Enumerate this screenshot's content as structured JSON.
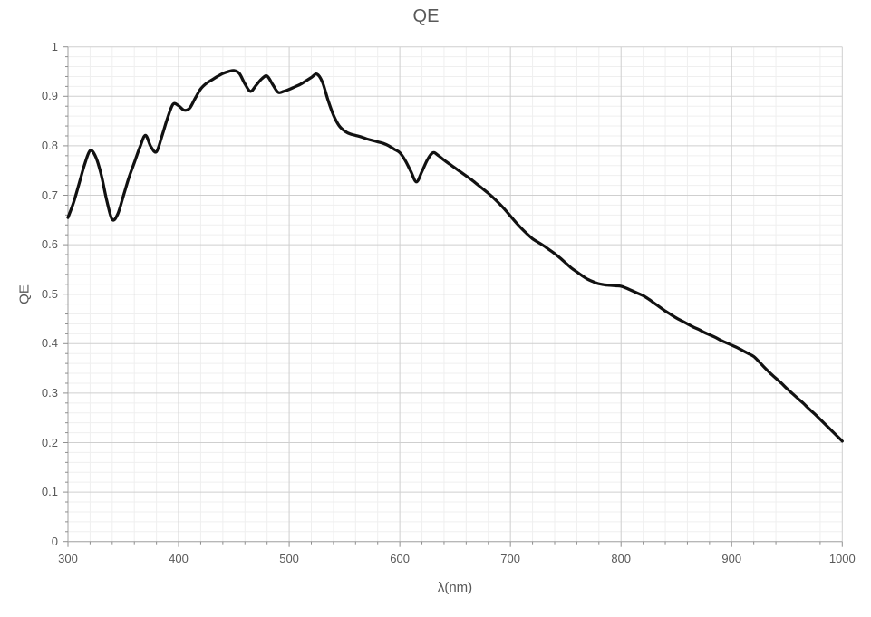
{
  "chart_data": {
    "type": "line",
    "title": "QE",
    "xlabel": "λ(nm)",
    "ylabel": "QE",
    "xlim": [
      300,
      1000
    ],
    "ylim": [
      0,
      1
    ],
    "grid": "major and minor gridlines on both axes",
    "legend_position": "none",
    "x_major_ticks": [
      300,
      400,
      500,
      600,
      700,
      800,
      900,
      1000
    ],
    "x_tick_labels": [
      "300",
      "400",
      "500",
      "600",
      "700",
      "800",
      "900",
      "1000"
    ],
    "x_minor_step": 20,
    "y_major_ticks": [
      0,
      0.1,
      0.2,
      0.3,
      0.4,
      0.5,
      0.6,
      0.7,
      0.8,
      0.9,
      1
    ],
    "y_tick_labels": [
      "0",
      "0.1",
      "0.2",
      "0.3",
      "0.4",
      "0.5",
      "0.6",
      "0.7",
      "0.8",
      "0.9",
      "1"
    ],
    "y_minor_step": 0.02,
    "series": [
      {
        "name": "QE",
        "color": "#111111",
        "x": [
          300,
          305,
          310,
          315,
          320,
          325,
          330,
          335,
          340,
          345,
          350,
          355,
          360,
          365,
          370,
          375,
          380,
          385,
          390,
          395,
          400,
          405,
          410,
          415,
          420,
          425,
          430,
          435,
          440,
          445,
          450,
          455,
          460,
          465,
          470,
          475,
          480,
          485,
          490,
          495,
          500,
          505,
          510,
          515,
          520,
          525,
          530,
          535,
          540,
          545,
          550,
          555,
          560,
          565,
          570,
          575,
          580,
          585,
          590,
          595,
          600,
          605,
          610,
          615,
          620,
          625,
          630,
          635,
          640,
          645,
          650,
          655,
          660,
          665,
          670,
          675,
          680,
          685,
          690,
          695,
          700,
          705,
          710,
          715,
          720,
          725,
          730,
          735,
          740,
          745,
          750,
          755,
          760,
          765,
          770,
          775,
          780,
          785,
          790,
          795,
          800,
          805,
          810,
          815,
          820,
          825,
          830,
          835,
          840,
          845,
          850,
          855,
          860,
          865,
          870,
          875,
          880,
          885,
          890,
          895,
          900,
          905,
          910,
          915,
          920,
          925,
          930,
          935,
          940,
          945,
          950,
          955,
          960,
          965,
          970,
          975,
          980,
          985,
          990,
          995,
          1000
        ],
        "y": [
          0.655,
          0.685,
          0.723,
          0.762,
          0.79,
          0.778,
          0.742,
          0.69,
          0.651,
          0.662,
          0.698,
          0.735,
          0.766,
          0.797,
          0.821,
          0.798,
          0.788,
          0.82,
          0.856,
          0.884,
          0.881,
          0.872,
          0.876,
          0.896,
          0.915,
          0.926,
          0.933,
          0.94,
          0.946,
          0.95,
          0.952,
          0.946,
          0.925,
          0.91,
          0.922,
          0.935,
          0.941,
          0.924,
          0.908,
          0.91,
          0.914,
          0.919,
          0.924,
          0.931,
          0.938,
          0.945,
          0.929,
          0.893,
          0.862,
          0.841,
          0.83,
          0.824,
          0.821,
          0.818,
          0.814,
          0.811,
          0.808,
          0.805,
          0.8,
          0.793,
          0.786,
          0.77,
          0.748,
          0.727,
          0.748,
          0.772,
          0.786,
          0.78,
          0.771,
          0.763,
          0.755,
          0.747,
          0.739,
          0.731,
          0.722,
          0.713,
          0.704,
          0.694,
          0.683,
          0.671,
          0.658,
          0.645,
          0.633,
          0.622,
          0.612,
          0.605,
          0.598,
          0.59,
          0.582,
          0.573,
          0.563,
          0.553,
          0.545,
          0.537,
          0.53,
          0.525,
          0.521,
          0.519,
          0.518,
          0.517,
          0.516,
          0.512,
          0.507,
          0.502,
          0.497,
          0.49,
          0.482,
          0.474,
          0.466,
          0.459,
          0.452,
          0.446,
          0.44,
          0.434,
          0.429,
          0.423,
          0.418,
          0.413,
          0.407,
          0.402,
          0.397,
          0.392,
          0.386,
          0.38,
          0.374,
          0.363,
          0.351,
          0.34,
          0.33,
          0.32,
          0.309,
          0.299,
          0.289,
          0.279,
          0.268,
          0.258,
          0.247,
          0.236,
          0.225,
          0.214,
          0.203
        ]
      }
    ],
    "colors": {
      "line": "#111111",
      "major_grid": "#cfcfcf",
      "minor_grid": "#efefef",
      "axis_line": "#b0b0b0",
      "tick_mark": "#8f8f8f",
      "text": "#595959",
      "background": "#ffffff"
    }
  }
}
